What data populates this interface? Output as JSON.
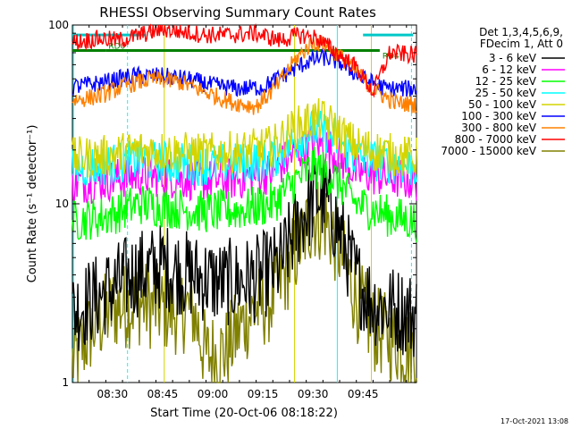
{
  "chart_data": {
    "type": "line",
    "title": "RHESSI Observing Summary Count Rates",
    "xlabel": "Start Time (20-Oct-06 08:18:22)",
    "ylabel": "Count Rate (s⁻¹ detector⁻¹)",
    "yscale": "log",
    "ylim": [
      1,
      100
    ],
    "xlim_minutes": [
      0,
      103
    ],
    "x_ticks": [
      {
        "t": 12,
        "label": "08:30"
      },
      {
        "t": 27,
        "label": "08:45"
      },
      {
        "t": 42,
        "label": "09:00"
      },
      {
        "t": 57,
        "label": "09:15"
      },
      {
        "t": 72,
        "label": "09:30"
      },
      {
        "t": 87,
        "label": "09:45"
      }
    ],
    "y_ticks": [
      {
        "v": 1,
        "label": "1"
      },
      {
        "v": 10,
        "label": "10"
      },
      {
        "v": 100,
        "label": "100"
      }
    ],
    "legend_header": [
      "Det 1,3,4,5,6,9,",
      "FDecim 1, Att 0"
    ],
    "legend_placement": "right",
    "series": [
      {
        "name": "3 - 6 keV",
        "color": "#000000",
        "points": [
          [
            0,
            2.5
          ],
          [
            10,
            3.2
          ],
          [
            18,
            4.0
          ],
          [
            27,
            4.5
          ],
          [
            35,
            4.0
          ],
          [
            45,
            3.6
          ],
          [
            55,
            3.8
          ],
          [
            62,
            4.5
          ],
          [
            68,
            8
          ],
          [
            73,
            11
          ],
          [
            76,
            10.5
          ],
          [
            80,
            7
          ],
          [
            85,
            3.8
          ],
          [
            90,
            2.8
          ],
          [
            102,
            2.4
          ]
        ]
      },
      {
        "name": "6 - 12 keV",
        "color": "#ff00ff",
        "points": [
          [
            0,
            13
          ],
          [
            10,
            13.5
          ],
          [
            20,
            14.5
          ],
          [
            30,
            14
          ],
          [
            40,
            13.5
          ],
          [
            50,
            13.8
          ],
          [
            60,
            15
          ],
          [
            66,
            19
          ],
          [
            72,
            22
          ],
          [
            76,
            21
          ],
          [
            80,
            18
          ],
          [
            85,
            15
          ],
          [
            95,
            14
          ],
          [
            102,
            13.5
          ]
        ]
      },
      {
        "name": "12 - 25 keV",
        "color": "#00ff00",
        "points": [
          [
            0,
            8
          ],
          [
            10,
            8.5
          ],
          [
            20,
            10
          ],
          [
            30,
            9.5
          ],
          [
            40,
            9
          ],
          [
            50,
            9.2
          ],
          [
            60,
            10
          ],
          [
            66,
            13
          ],
          [
            72,
            16
          ],
          [
            76,
            15
          ],
          [
            80,
            13
          ],
          [
            85,
            10
          ],
          [
            95,
            8.5
          ],
          [
            102,
            8
          ]
        ]
      },
      {
        "name": "25 - 50 keV",
        "color": "#00ffff",
        "points": [
          [
            0,
            16
          ],
          [
            10,
            16.5
          ],
          [
            20,
            17.5
          ],
          [
            30,
            17
          ],
          [
            40,
            16.5
          ],
          [
            50,
            16.8
          ],
          [
            60,
            18
          ],
          [
            66,
            22
          ],
          [
            72,
            26
          ],
          [
            76,
            25
          ],
          [
            80,
            22
          ],
          [
            85,
            18
          ],
          [
            95,
            17
          ],
          [
            102,
            16
          ]
        ]
      },
      {
        "name": "50 - 100 keV",
        "color": "#d4d400",
        "points": [
          [
            0,
            18
          ],
          [
            10,
            18.5
          ],
          [
            20,
            20
          ],
          [
            30,
            19.5
          ],
          [
            40,
            19
          ],
          [
            50,
            19.5
          ],
          [
            60,
            21
          ],
          [
            66,
            26
          ],
          [
            72,
            30
          ],
          [
            76,
            29
          ],
          [
            80,
            25
          ],
          [
            85,
            21
          ],
          [
            95,
            19
          ],
          [
            102,
            18
          ]
        ]
      },
      {
        "name": "100 - 300 keV",
        "color": "#0000ff",
        "points": [
          [
            0,
            45
          ],
          [
            10,
            48
          ],
          [
            18,
            52
          ],
          [
            26,
            52
          ],
          [
            34,
            50
          ],
          [
            42,
            46
          ],
          [
            50,
            44
          ],
          [
            57,
            45
          ],
          [
            63,
            52
          ],
          [
            70,
            62
          ],
          [
            75,
            66
          ],
          [
            80,
            62
          ],
          [
            87,
            50
          ],
          [
            94,
            44
          ],
          [
            102,
            44
          ]
        ]
      },
      {
        "name": "300 - 800 keV",
        "color": "#ff8000",
        "points": [
          [
            0,
            38
          ],
          [
            8,
            40
          ],
          [
            16,
            46
          ],
          [
            24,
            50
          ],
          [
            32,
            48
          ],
          [
            40,
            42
          ],
          [
            48,
            37
          ],
          [
            55,
            35
          ],
          [
            61,
            45
          ],
          [
            67,
            65
          ],
          [
            72,
            80
          ],
          [
            76,
            78
          ],
          [
            82,
            62
          ],
          [
            90,
            44
          ],
          [
            96,
            37
          ],
          [
            102,
            36
          ]
        ]
      },
      {
        "name": "800 - 7000 keV",
        "color": "#ff0000",
        "points": [
          [
            0,
            80
          ],
          [
            8,
            84
          ],
          [
            14,
            82
          ],
          [
            27,
            95
          ],
          [
            40,
            88
          ],
          [
            48,
            88
          ],
          [
            55,
            90
          ],
          [
            62,
            82
          ],
          [
            68,
            88
          ],
          [
            73,
            85
          ],
          [
            79,
            70
          ],
          [
            85,
            58
          ],
          [
            90,
            42
          ],
          [
            95,
            70
          ],
          [
            102,
            68
          ]
        ]
      },
      {
        "name": "7000 - 15000 keV",
        "color": "#808000",
        "points": [
          [
            0,
            1.3
          ],
          [
            6,
            2.0
          ],
          [
            12,
            2.6
          ],
          [
            20,
            2.8
          ],
          [
            30,
            2.5
          ],
          [
            36,
            2.6
          ],
          [
            40,
            1.4
          ],
          [
            46,
            1.5
          ],
          [
            52,
            2.3
          ],
          [
            60,
            3.0
          ],
          [
            66,
            5
          ],
          [
            72,
            8.5
          ],
          [
            76,
            8
          ],
          [
            80,
            5.5
          ],
          [
            85,
            3
          ],
          [
            90,
            2
          ],
          [
            102,
            1.5
          ]
        ]
      }
    ],
    "attenuator_lines": [
      {
        "label": "N",
        "color": "#00c8c8",
        "t_start": 0,
        "t_end": 22,
        "level": 88
      },
      {
        "label": "",
        "color": "#00c8c8",
        "t_start": 87,
        "t_end": 102,
        "level": 88
      },
      {
        "label": "RD0",
        "color": "#008000",
        "t_start": 0,
        "t_end": 10,
        "level": 72
      },
      {
        "label": "RD4",
        "color": "#008000",
        "t_start": 10,
        "t_end": 92,
        "level": 72
      }
    ],
    "vertical_markers": [
      {
        "t": 0.3,
        "color": "#00ffff",
        "style": "solid"
      },
      {
        "t": 16.5,
        "color": "#00ffff",
        "style": "dashed"
      },
      {
        "t": 27.5,
        "color": "#d4d400",
        "style": "solid"
      },
      {
        "t": 66.5,
        "color": "#d4d400",
        "style": "solid"
      },
      {
        "t": 79.3,
        "color": "#00ffff",
        "style": "solid"
      },
      {
        "t": 89.5,
        "color": "#d4d400",
        "style": "solid"
      },
      {
        "t": 101.5,
        "color": "#00ffff",
        "style": "dashed"
      }
    ],
    "grid": false
  },
  "footer_timestamp": "17-Oct-2021 13:08"
}
